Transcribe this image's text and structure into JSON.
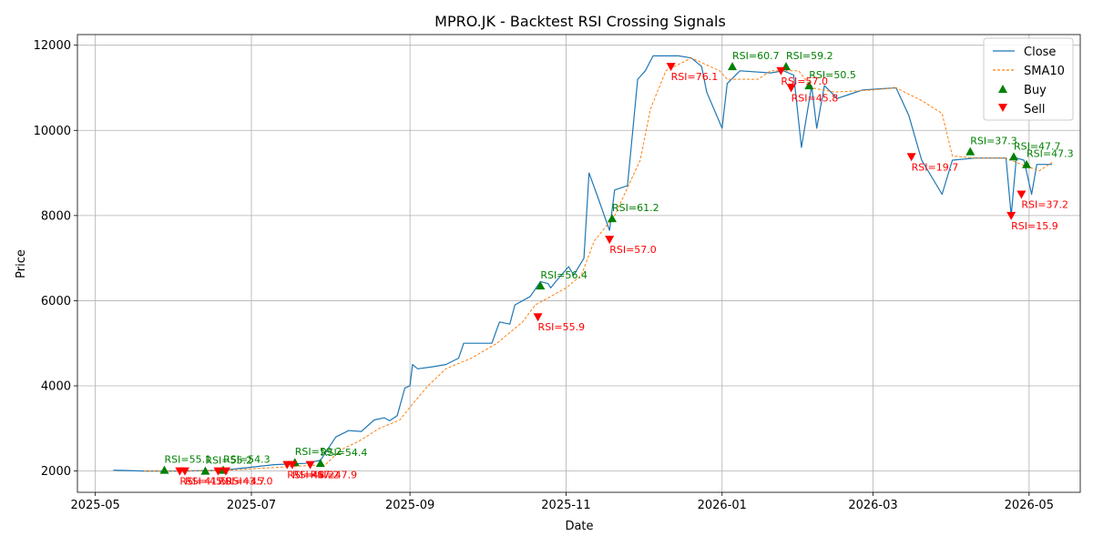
{
  "chart_data": {
    "type": "line",
    "title": "MPRO.JK - Backtest RSI Crossing Signals",
    "xlabel": "Date",
    "ylabel": "Price",
    "grid": true,
    "legend_position": "top-right",
    "xlim": [
      "2025-04-24",
      "2026-05-21"
    ],
    "ylim": [
      1500,
      12250
    ],
    "x_ticks": [
      "2025-05",
      "2025-07",
      "2025-09",
      "2025-11",
      "2026-01",
      "2026-03",
      "2026-05"
    ],
    "y_ticks": [
      2000,
      4000,
      6000,
      8000,
      10000,
      12000
    ],
    "colors": {
      "close": "#1f77b4",
      "sma": "#ff7f0e",
      "buy": "#008000",
      "sell": "#ff0000"
    },
    "series": [
      {
        "name": "Close",
        "style": "solid",
        "points": [
          [
            "2025-05-08",
            2020
          ],
          [
            "2025-05-20",
            2000
          ],
          [
            "2025-06-05",
            2000
          ],
          [
            "2025-06-20",
            2020
          ],
          [
            "2025-07-10",
            2150
          ],
          [
            "2025-07-22",
            2180
          ],
          [
            "2025-07-28",
            2250
          ],
          [
            "2025-08-03",
            2800
          ],
          [
            "2025-08-08",
            2950
          ],
          [
            "2025-08-13",
            2930
          ],
          [
            "2025-08-18",
            3200
          ],
          [
            "2025-08-22",
            3250
          ],
          [
            "2025-08-24",
            3180
          ],
          [
            "2025-08-27",
            3300
          ],
          [
            "2025-08-30",
            3950
          ],
          [
            "2025-09-01",
            4000
          ],
          [
            "2025-09-02",
            4500
          ],
          [
            "2025-09-04",
            4400
          ],
          [
            "2025-09-10",
            4450
          ],
          [
            "2025-09-15",
            4500
          ],
          [
            "2025-09-20",
            4650
          ],
          [
            "2025-09-22",
            5000
          ],
          [
            "2025-09-30",
            5000
          ],
          [
            "2025-10-03",
            5000
          ],
          [
            "2025-10-06",
            5500
          ],
          [
            "2025-10-10",
            5450
          ],
          [
            "2025-10-12",
            5900
          ],
          [
            "2025-10-18",
            6100
          ],
          [
            "2025-10-22",
            6450
          ],
          [
            "2025-10-25",
            6400
          ],
          [
            "2025-10-26",
            6300
          ],
          [
            "2025-10-28",
            6450
          ],
          [
            "2025-11-02",
            6800
          ],
          [
            "2025-11-04",
            6600
          ],
          [
            "2025-11-08",
            7000
          ],
          [
            "2025-11-10",
            9000
          ],
          [
            "2025-11-13",
            8500
          ],
          [
            "2025-11-18",
            7650
          ],
          [
            "2025-11-20",
            8600
          ],
          [
            "2025-11-25",
            8700
          ],
          [
            "2025-11-29",
            11200
          ],
          [
            "2025-12-02",
            11400
          ],
          [
            "2025-12-05",
            11750
          ],
          [
            "2025-12-15",
            11750
          ],
          [
            "2025-12-20",
            11700
          ],
          [
            "2025-12-24",
            11500
          ],
          [
            "2025-12-26",
            10900
          ],
          [
            "2026-01-01",
            10050
          ],
          [
            "2026-01-03",
            11100
          ],
          [
            "2026-01-08",
            11400
          ],
          [
            "2026-01-20",
            11350
          ],
          [
            "2026-01-25",
            11400
          ],
          [
            "2026-01-29",
            11300
          ],
          [
            "2026-02-01",
            9600
          ],
          [
            "2026-02-05",
            11050
          ],
          [
            "2026-02-07",
            10050
          ],
          [
            "2026-02-10",
            11050
          ],
          [
            "2026-02-15",
            10750
          ],
          [
            "2026-02-20",
            10850
          ],
          [
            "2026-02-25",
            10950
          ],
          [
            "2026-03-10",
            11000
          ],
          [
            "2026-03-15",
            10350
          ],
          [
            "2026-03-20",
            9300
          ],
          [
            "2026-03-28",
            8500
          ],
          [
            "2026-04-01",
            9300
          ],
          [
            "2026-04-10",
            9350
          ],
          [
            "2026-04-22",
            9350
          ],
          [
            "2026-04-24",
            8000
          ],
          [
            "2026-04-26",
            9350
          ],
          [
            "2026-04-29",
            9300
          ],
          [
            "2026-05-02",
            8500
          ],
          [
            "2026-05-04",
            9200
          ],
          [
            "2026-05-10",
            9200
          ]
        ]
      },
      {
        "name": "SMA10",
        "style": "dashed",
        "points": [
          [
            "2025-05-20",
            2000
          ],
          [
            "2025-06-20",
            2010
          ],
          [
            "2025-07-15",
            2100
          ],
          [
            "2025-07-30",
            2150
          ],
          [
            "2025-08-05",
            2500
          ],
          [
            "2025-08-12",
            2700
          ],
          [
            "2025-08-20",
            3000
          ],
          [
            "2025-08-28",
            3200
          ],
          [
            "2025-09-01",
            3500
          ],
          [
            "2025-09-08",
            4000
          ],
          [
            "2025-09-15",
            4400
          ],
          [
            "2025-09-25",
            4650
          ],
          [
            "2025-10-05",
            5000
          ],
          [
            "2025-10-15",
            5500
          ],
          [
            "2025-10-20",
            5900
          ],
          [
            "2025-11-01",
            6300
          ],
          [
            "2025-11-07",
            6600
          ],
          [
            "2025-11-12",
            7400
          ],
          [
            "2025-11-20",
            8000
          ],
          [
            "2025-11-30",
            9300
          ],
          [
            "2025-12-04",
            10500
          ],
          [
            "2025-12-10",
            11400
          ],
          [
            "2025-12-20",
            11700
          ],
          [
            "2025-12-31",
            11400
          ],
          [
            "2026-01-03",
            11200
          ],
          [
            "2026-01-15",
            11200
          ],
          [
            "2026-01-20",
            11400
          ],
          [
            "2026-01-31",
            11400
          ],
          [
            "2026-02-05",
            11000
          ],
          [
            "2026-02-14",
            10900
          ],
          [
            "2026-03-01",
            10950
          ],
          [
            "2026-03-10",
            11000
          ],
          [
            "2026-03-20",
            10700
          ],
          [
            "2026-03-28",
            10400
          ],
          [
            "2026-04-01",
            9400
          ],
          [
            "2026-04-10",
            9350
          ],
          [
            "2026-04-22",
            9350
          ],
          [
            "2026-04-28",
            9200
          ],
          [
            "2026-05-05",
            9050
          ],
          [
            "2026-05-10",
            9250
          ]
        ]
      }
    ],
    "buy_signals": [
      {
        "date": "2025-05-28",
        "price": 2020,
        "label": "RSI=55.1"
      },
      {
        "date": "2025-06-13",
        "price": 2000,
        "label": "RSI=55.2"
      },
      {
        "date": "2025-06-20",
        "price": 2020,
        "label": "RSI=54.3"
      },
      {
        "date": "2025-07-18",
        "price": 2200,
        "label": "RSI=59.2"
      },
      {
        "date": "2025-07-28",
        "price": 2180,
        "label": "RSI=54.4"
      },
      {
        "date": "2025-10-22",
        "price": 6350,
        "label": "RSI=56.4"
      },
      {
        "date": "2025-11-19",
        "price": 7930,
        "label": "RSI=61.2"
      },
      {
        "date": "2026-01-05",
        "price": 11500,
        "label": "RSI=60.7"
      },
      {
        "date": "2026-01-26",
        "price": 11500,
        "label": "RSI=59.2"
      },
      {
        "date": "2026-02-04",
        "price": 11050,
        "label": "RSI=50.5"
      },
      {
        "date": "2026-04-08",
        "price": 9500,
        "label": "RSI=37.3"
      },
      {
        "date": "2026-04-25",
        "price": 9380,
        "label": "RSI=47.7"
      },
      {
        "date": "2026-04-30",
        "price": 9200,
        "label": "RSI=47.3"
      }
    ],
    "sell_signals": [
      {
        "date": "2025-06-03",
        "price": 2000,
        "label": "RSI=41.5"
      },
      {
        "date": "2025-06-05",
        "price": 2000,
        "label": "RSI=45.0"
      },
      {
        "date": "2025-06-18",
        "price": 2000,
        "label": "RSI=43.7"
      },
      {
        "date": "2025-06-21",
        "price": 2000,
        "label": "RSI=45.0"
      },
      {
        "date": "2025-07-15",
        "price": 2150,
        "label": "RSI=48.2"
      },
      {
        "date": "2025-07-17",
        "price": 2150,
        "label": "RSI=47.2"
      },
      {
        "date": "2025-07-24",
        "price": 2150,
        "label": "RSI=47.9"
      },
      {
        "date": "2025-10-21",
        "price": 5620,
        "label": "RSI=55.9"
      },
      {
        "date": "2025-11-18",
        "price": 7440,
        "label": "RSI=57.0"
      },
      {
        "date": "2025-12-12",
        "price": 11500,
        "label": "RSI=76.1"
      },
      {
        "date": "2026-01-24",
        "price": 11400,
        "label": "RSI=57.0"
      },
      {
        "date": "2026-01-28",
        "price": 11000,
        "label": "RSI=45.8"
      },
      {
        "date": "2026-03-16",
        "price": 9380,
        "label": "RSI=19.7"
      },
      {
        "date": "2026-04-24",
        "price": 8000,
        "label": "RSI=15.9"
      },
      {
        "date": "2026-04-28",
        "price": 8500,
        "label": "RSI=37.2"
      }
    ]
  }
}
